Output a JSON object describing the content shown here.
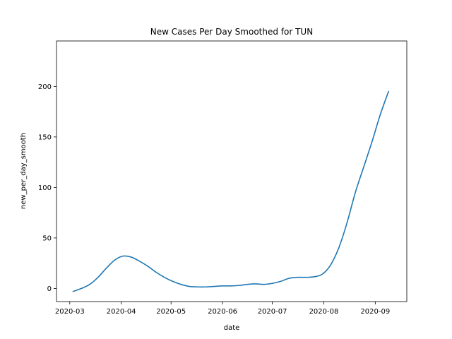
{
  "chart_data": {
    "type": "line",
    "title": "New Cases Per Day Smoothed for TUN",
    "xlabel": "date",
    "ylabel": "new_per_day_smooth",
    "x_tick_labels": [
      "2020-03",
      "2020-04",
      "2020-05",
      "2020-06",
      "2020-07",
      "2020-08",
      "2020-09"
    ],
    "x_tick_dates": [
      "2020-03-01",
      "2020-04-01",
      "2020-05-01",
      "2020-06-01",
      "2020-07-01",
      "2020-08-01",
      "2020-09-01"
    ],
    "y_ticks": [
      0,
      50,
      100,
      150,
      200
    ],
    "xlim": [
      "2020-02-22",
      "2020-09-20"
    ],
    "ylim": [
      -13,
      245
    ],
    "grid": false,
    "series": [
      {
        "color": "#1f77b4",
        "points": [
          [
            "2020-03-03",
            -3
          ],
          [
            "2020-03-08",
            0
          ],
          [
            "2020-03-13",
            4
          ],
          [
            "2020-03-18",
            11
          ],
          [
            "2020-03-23",
            20
          ],
          [
            "2020-03-28",
            28
          ],
          [
            "2020-04-02",
            32
          ],
          [
            "2020-04-07",
            31
          ],
          [
            "2020-04-12",
            27
          ],
          [
            "2020-04-17",
            22
          ],
          [
            "2020-04-22",
            16
          ],
          [
            "2020-04-27",
            11
          ],
          [
            "2020-05-02",
            7
          ],
          [
            "2020-05-07",
            4
          ],
          [
            "2020-05-12",
            2
          ],
          [
            "2020-05-17",
            1.5
          ],
          [
            "2020-05-22",
            1.5
          ],
          [
            "2020-05-27",
            2
          ],
          [
            "2020-06-01",
            2.5
          ],
          [
            "2020-06-06",
            2.5
          ],
          [
            "2020-06-11",
            3
          ],
          [
            "2020-06-16",
            4
          ],
          [
            "2020-06-21",
            4.5
          ],
          [
            "2020-06-26",
            4
          ],
          [
            "2020-07-01",
            5
          ],
          [
            "2020-07-06",
            7
          ],
          [
            "2020-07-11",
            10
          ],
          [
            "2020-07-16",
            11
          ],
          [
            "2020-07-21",
            11
          ],
          [
            "2020-07-26",
            11.5
          ],
          [
            "2020-07-31",
            14
          ],
          [
            "2020-08-05",
            23
          ],
          [
            "2020-08-10",
            40
          ],
          [
            "2020-08-15",
            65
          ],
          [
            "2020-08-20",
            95
          ],
          [
            "2020-08-25",
            120
          ],
          [
            "2020-08-30",
            145
          ],
          [
            "2020-09-04",
            172
          ],
          [
            "2020-09-09",
            195
          ]
        ]
      }
    ]
  }
}
